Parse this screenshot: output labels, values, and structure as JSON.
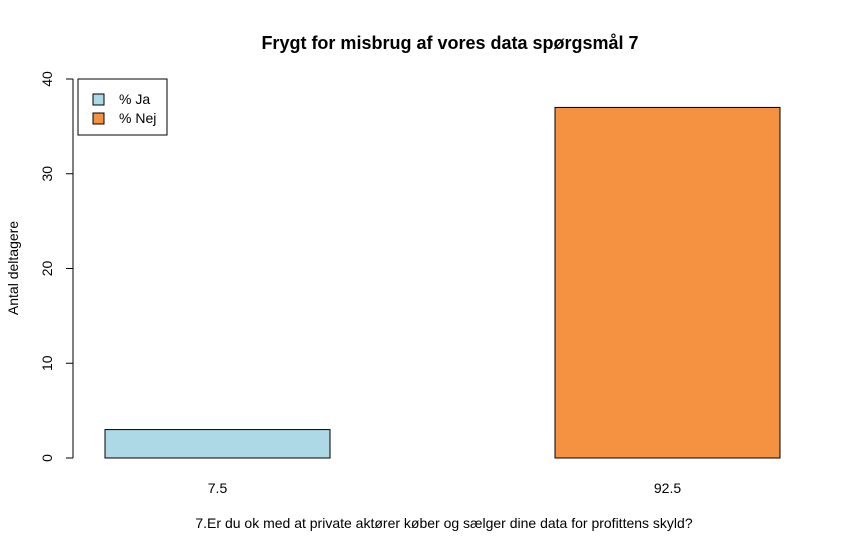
{
  "chart_data": {
    "type": "bar",
    "title": "Frygt for misbrug af vores data spørgsmål 7",
    "xlabel": "7.Er du ok med at private aktører køber og sælger dine data for profittens skyld?",
    "ylabel": "Antal deltagere",
    "categories": [
      "7.5",
      "92.5"
    ],
    "values": [
      3,
      37
    ],
    "colors": [
      "#add8e6",
      "#f49242"
    ],
    "ylim": [
      0,
      40
    ],
    "yticks": [
      "0",
      "10",
      "20",
      "30",
      "40"
    ],
    "grid": false,
    "legend": {
      "placement": "top-left",
      "entries": [
        {
          "label": "% Ja",
          "color": "#add8e6"
        },
        {
          "label": "% Nej",
          "color": "#f49242"
        }
      ]
    }
  }
}
